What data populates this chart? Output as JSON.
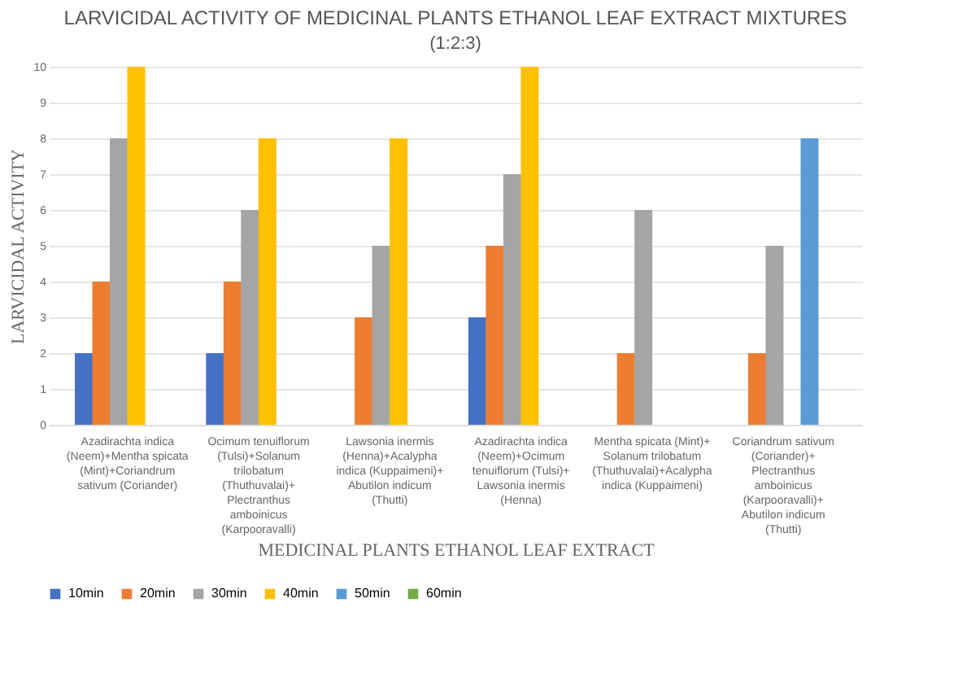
{
  "chart_data": {
    "type": "bar",
    "title": "LARVICIDAL ACTIVITY OF MEDICINAL PLANTS ETHANOL LEAF EXTRACT MIXTURES",
    "subtitle": "(1:2:3)",
    "xlabel": "MEDICINAL PLANTS ETHANOL LEAF EXTRACT",
    "ylabel": "LARVICIDAL ACTIVITY",
    "categories": [
      "Azadirachta indica (Neem)+Mentha spicata (Mint)+Coriandrum sativum (Coriander)",
      "Ocimum tenuiflorum (Tulsi)+Solanum trilobatum (Thuthuvalai)+Plectranthus amboinicus (Karpooravalli)",
      "Lawsonia inermis (Henna)+Acalypha indica (Kuppaimeni)+Abutilon indicum (Thutti)",
      "Azadirachta indica (Neem)+Ocimum tenuiflorum (Tulsi)+Lawsonia inermis (Henna)",
      "Mentha spicata (Mint)+Solanum trilobatum (Thuthuvalai)+Acalypha indica (Kuppaimeni)",
      "Coriandrum sativum (Coriander)+Plectranthus amboinicus (Karpooravalli)+Abutilon indicum (Thutti)"
    ],
    "series": [
      {
        "name": "10min",
        "color": "#4472c4",
        "values": [
          2,
          2,
          0,
          3,
          0,
          0
        ]
      },
      {
        "name": "20min",
        "color": "#ed7d31",
        "values": [
          4,
          4,
          3,
          5,
          2,
          2
        ]
      },
      {
        "name": "30min",
        "color": "#a5a5a5",
        "values": [
          8,
          6,
          5,
          7,
          6,
          5
        ]
      },
      {
        "name": "40min",
        "color": "#ffc000",
        "values": [
          10,
          8,
          8,
          10,
          0,
          0
        ]
      },
      {
        "name": "50min",
        "color": "#5b9bd5",
        "values": [
          0,
          0,
          0,
          0,
          0,
          8
        ]
      },
      {
        "name": "60min",
        "color": "#70ad47",
        "values": [
          0,
          0,
          0,
          0,
          0,
          0
        ]
      }
    ],
    "ylim": [
      0,
      10
    ],
    "yticks": [
      0,
      1,
      2,
      3,
      4,
      5,
      6,
      7,
      8,
      9,
      10
    ],
    "grid": "y",
    "legend": "bottom"
  }
}
